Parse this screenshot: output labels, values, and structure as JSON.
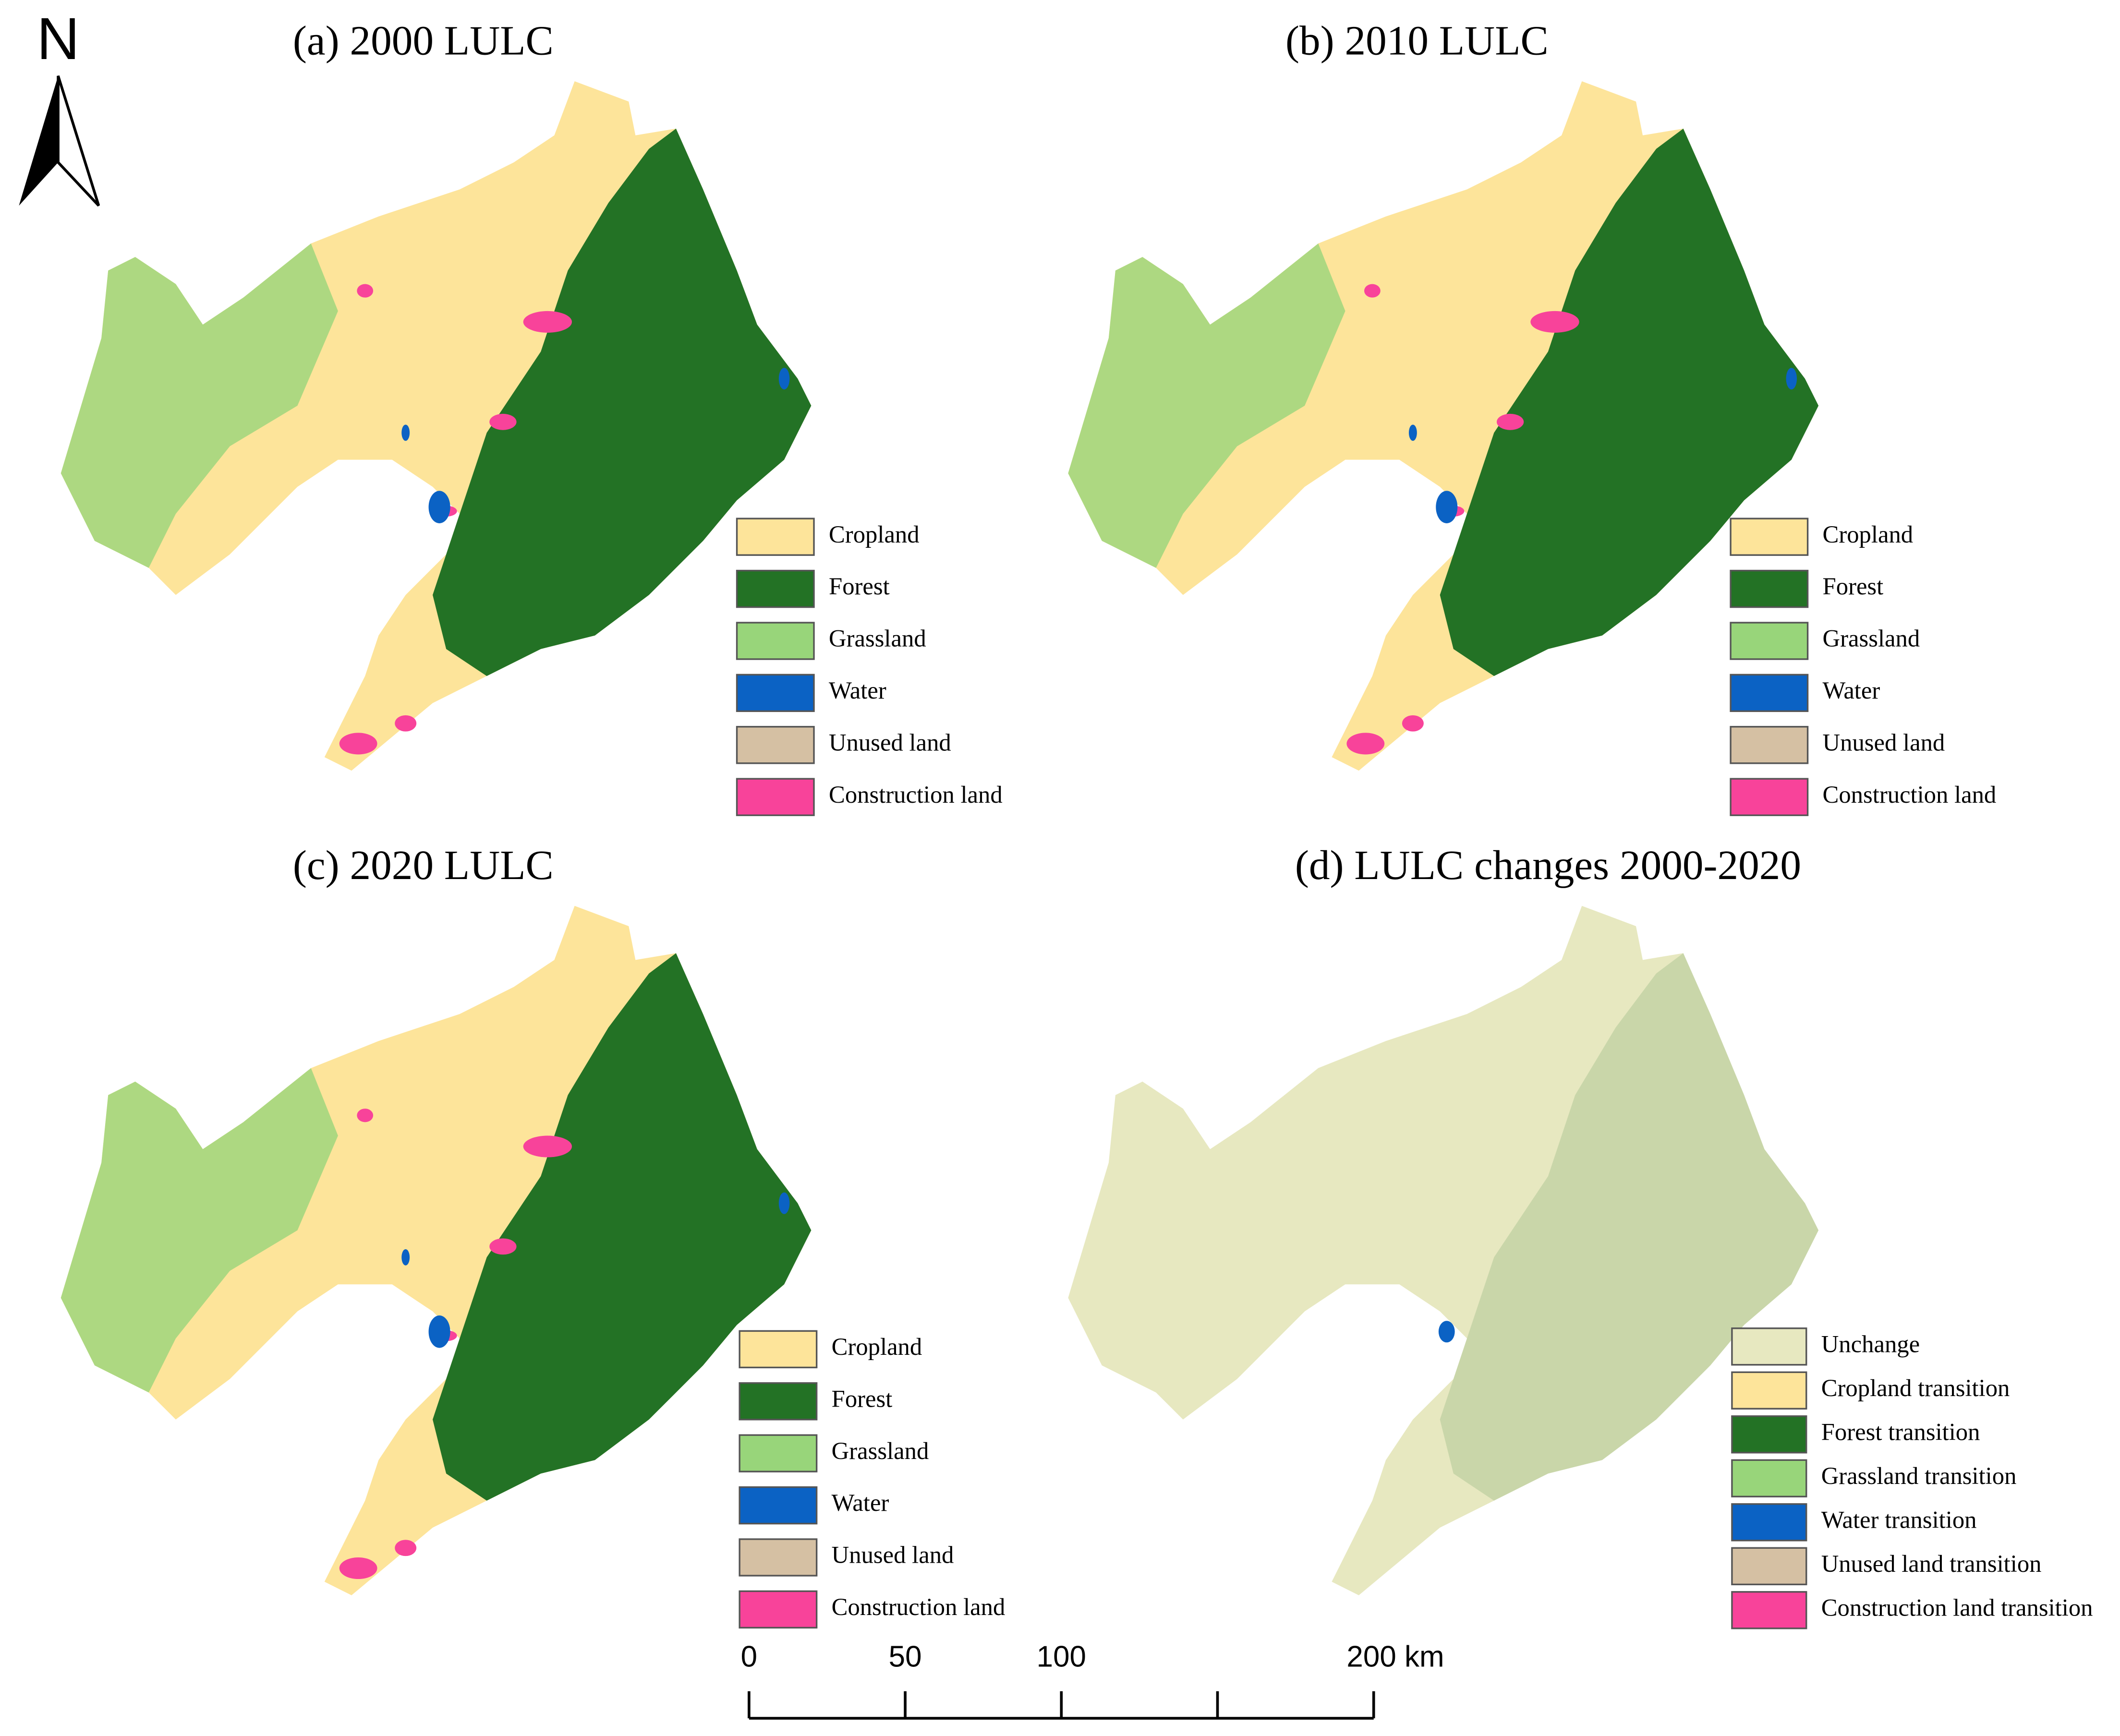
{
  "north_label": "N",
  "panels": [
    {
      "title": "(a) 2000 LULC",
      "legend": [
        {
          "label": "Cropland",
          "color": "#fde49a"
        },
        {
          "label": "Forest",
          "color": "#237225"
        },
        {
          "label": "Grassland",
          "color": "#98d57a"
        },
        {
          "label": "Water",
          "color": "#0b62c4"
        },
        {
          "label": "Unused land",
          "color": "#d5c0a3"
        },
        {
          "label": "Construction land",
          "color": "#f8439a"
        }
      ]
    },
    {
      "title": "(b) 2010 LULC",
      "legend": [
        {
          "label": "Cropland",
          "color": "#fde49a"
        },
        {
          "label": "Forest",
          "color": "#237225"
        },
        {
          "label": "Grassland",
          "color": "#98d57a"
        },
        {
          "label": "Water",
          "color": "#0b62c4"
        },
        {
          "label": "Unused land",
          "color": "#d5c0a3"
        },
        {
          "label": "Construction land",
          "color": "#f8439a"
        }
      ]
    },
    {
      "title": "(c) 2020 LULC",
      "legend": [
        {
          "label": "Cropland",
          "color": "#fde49a"
        },
        {
          "label": "Forest",
          "color": "#237225"
        },
        {
          "label": "Grassland",
          "color": "#98d57a"
        },
        {
          "label": "Water",
          "color": "#0b62c4"
        },
        {
          "label": "Unused land",
          "color": "#d5c0a3"
        },
        {
          "label": "Construction land",
          "color": "#f8439a"
        }
      ]
    },
    {
      "title": "(d) LULC changes 2000-2020",
      "legend": [
        {
          "label": "Unchange",
          "color": "#e7e8c0"
        },
        {
          "label": "Cropland transition",
          "color": "#fde49a"
        },
        {
          "label": "Forest transition",
          "color": "#237225"
        },
        {
          "label": "Grassland transition",
          "color": "#98d57a"
        },
        {
          "label": "Water transition",
          "color": "#0b62c4"
        },
        {
          "label": "Unused land transition",
          "color": "#d5c0a3"
        },
        {
          "label": "Construction land transition",
          "color": "#f8439a"
        }
      ]
    }
  ],
  "scale_bar": {
    "range": [
      0,
      200
    ],
    "ticks": [
      0,
      50,
      100,
      {
        "value": 150,
        "label": null
      },
      {
        "value": 200,
        "label": "200 km"
      }
    ]
  }
}
